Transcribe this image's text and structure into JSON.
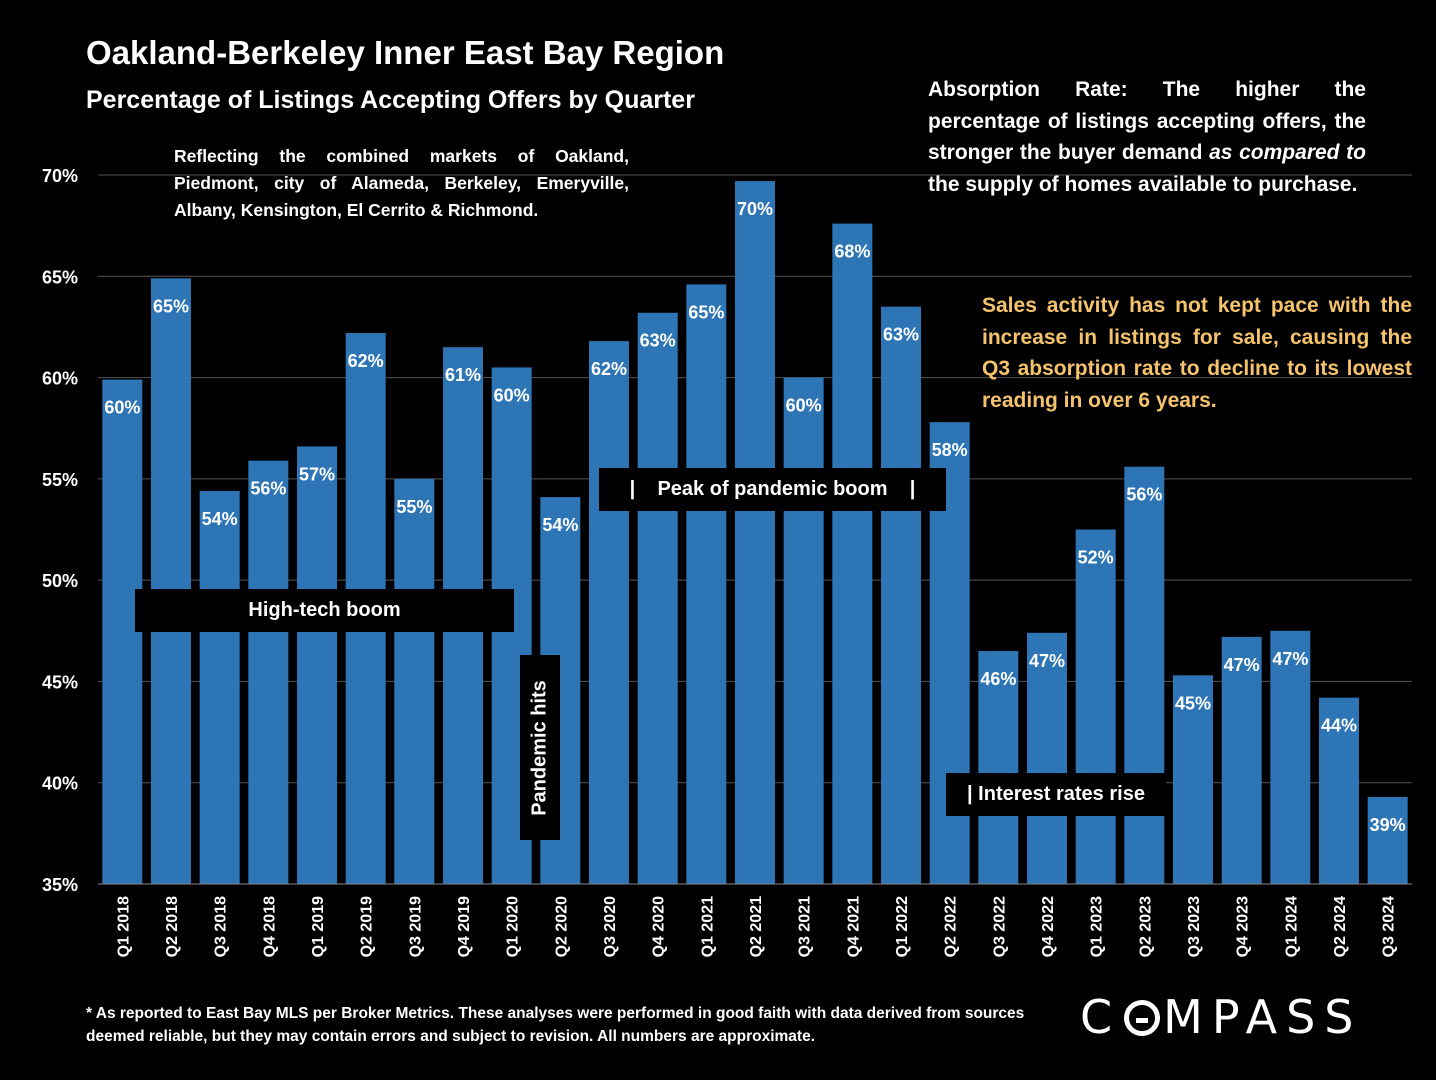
{
  "header": {
    "title": "Oakland-Berkeley Inner East Bay Region",
    "subtitle": "Percentage of Listings Accepting Offers by Quarter"
  },
  "notes": {
    "markets": "Reflecting the combined markets of Oakland, Piedmont, city of Alameda, Berkeley, Emeryville, Albany, Kensington, El Cerrito & Richmond.",
    "definition_part1": "Absorption Rate:  The higher the percentage of listings accepting offers, the stronger the buyer demand ",
    "definition_em": "as compared to",
    "definition_part2": " the supply of homes available to purchase.",
    "insight": "Sales activity has not kept pace with the increase in listings for sale, causing the Q3 absorption rate to decline to its lowest reading in over 6 years."
  },
  "callouts": {
    "high_tech": "High-tech boom",
    "pandemic_hits": "Pandemic hits",
    "pandemic_peak": "|    Peak of pandemic boom    |",
    "interest_rates": "| Interest rates rise"
  },
  "footnote": "* As reported to East Bay MLS per Broker Metrics. These analyses were performed in good faith with data derived from sources deemed reliable, but they may contain errors and subject to revision. All numbers are approximate.",
  "logo": {
    "left": "C",
    "right": "MPASS"
  },
  "colors": {
    "bar": "#2e75b6",
    "background": "#000000",
    "insight": "#f5c36b",
    "grid": "#555555"
  },
  "chart_data": {
    "type": "bar",
    "categories": [
      "Q1 2018",
      "Q2 2018",
      "Q3 2018",
      "Q4 2018",
      "Q1 2019",
      "Q2 2019",
      "Q3 2019",
      "Q4 2019",
      "Q1 2020",
      "Q2 2020",
      "Q3 2020",
      "Q4 2020",
      "Q1 2021",
      "Q2 2021",
      "Q3 2021",
      "Q4 2021",
      "Q1 2022",
      "Q2 2022",
      "Q3 2022",
      "Q4 2022",
      "Q1 2023",
      "Q2 2023",
      "Q3 2023",
      "Q4 2023",
      "Q1 2024",
      "Q2 2024",
      "Q3 2024"
    ],
    "values": [
      59.9,
      64.9,
      54.4,
      55.9,
      56.6,
      62.2,
      55.0,
      61.5,
      60.5,
      54.1,
      61.8,
      63.2,
      64.6,
      69.7,
      60.0,
      67.6,
      63.5,
      57.8,
      46.5,
      47.4,
      52.5,
      55.6,
      45.3,
      47.2,
      47.5,
      44.2,
      39.3
    ],
    "data_labels": [
      "60%",
      "65%",
      "54%",
      "56%",
      "57%",
      "62%",
      "55%",
      "61%",
      "60%",
      "54%",
      "62%",
      "63%",
      "65%",
      "70%",
      "60%",
      "68%",
      "63%",
      "58%",
      "46%",
      "47%",
      "52%",
      "56%",
      "45%",
      "47%",
      "47%",
      "44%",
      "39%"
    ],
    "y_ticks": [
      "35%",
      "40%",
      "45%",
      "50%",
      "55%",
      "60%",
      "65%",
      "70%"
    ],
    "ylim": [
      35,
      70
    ],
    "grid": true
  }
}
